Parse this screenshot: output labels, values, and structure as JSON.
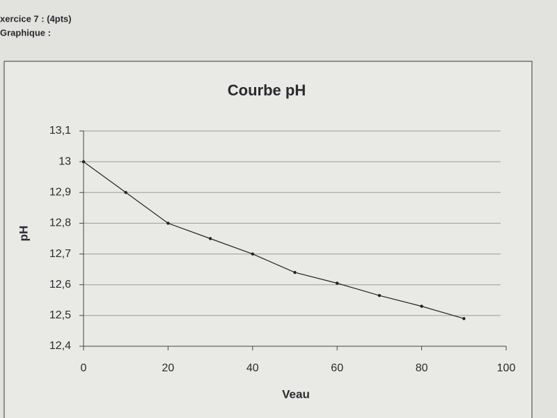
{
  "header": {
    "exercise": "xercice 7 : (4pts)",
    "section": "Graphique :"
  },
  "chart_data": {
    "type": "line",
    "title": "Courbe pH",
    "x_label": "Veau",
    "y_label": "pH",
    "x": [
      0,
      10,
      20,
      30,
      40,
      50,
      60,
      70,
      80,
      90
    ],
    "series": [
      {
        "name": "pH",
        "color": "#222222",
        "values": [
          13,
          12.9,
          12.8,
          12.75,
          12.7,
          12.64,
          12.605,
          12.565,
          12.53,
          12.49
        ]
      }
    ],
    "xlim": [
      0,
      100
    ],
    "xticks": [
      0,
      20,
      40,
      60,
      80,
      100
    ],
    "ylim": [
      12.4,
      13.1
    ],
    "yticks": [
      {
        "value": 12.4,
        "label": "12,4"
      },
      {
        "value": 12.5,
        "label": "12,5"
      },
      {
        "value": 12.6,
        "label": "12,6"
      },
      {
        "value": 12.7,
        "label": "12,7"
      },
      {
        "value": 12.8,
        "label": "12,8"
      },
      {
        "value": 12.9,
        "label": "12,9"
      },
      13,
      {
        "value": 13.1,
        "label": "13,1"
      }
    ],
    "grid": true
  }
}
